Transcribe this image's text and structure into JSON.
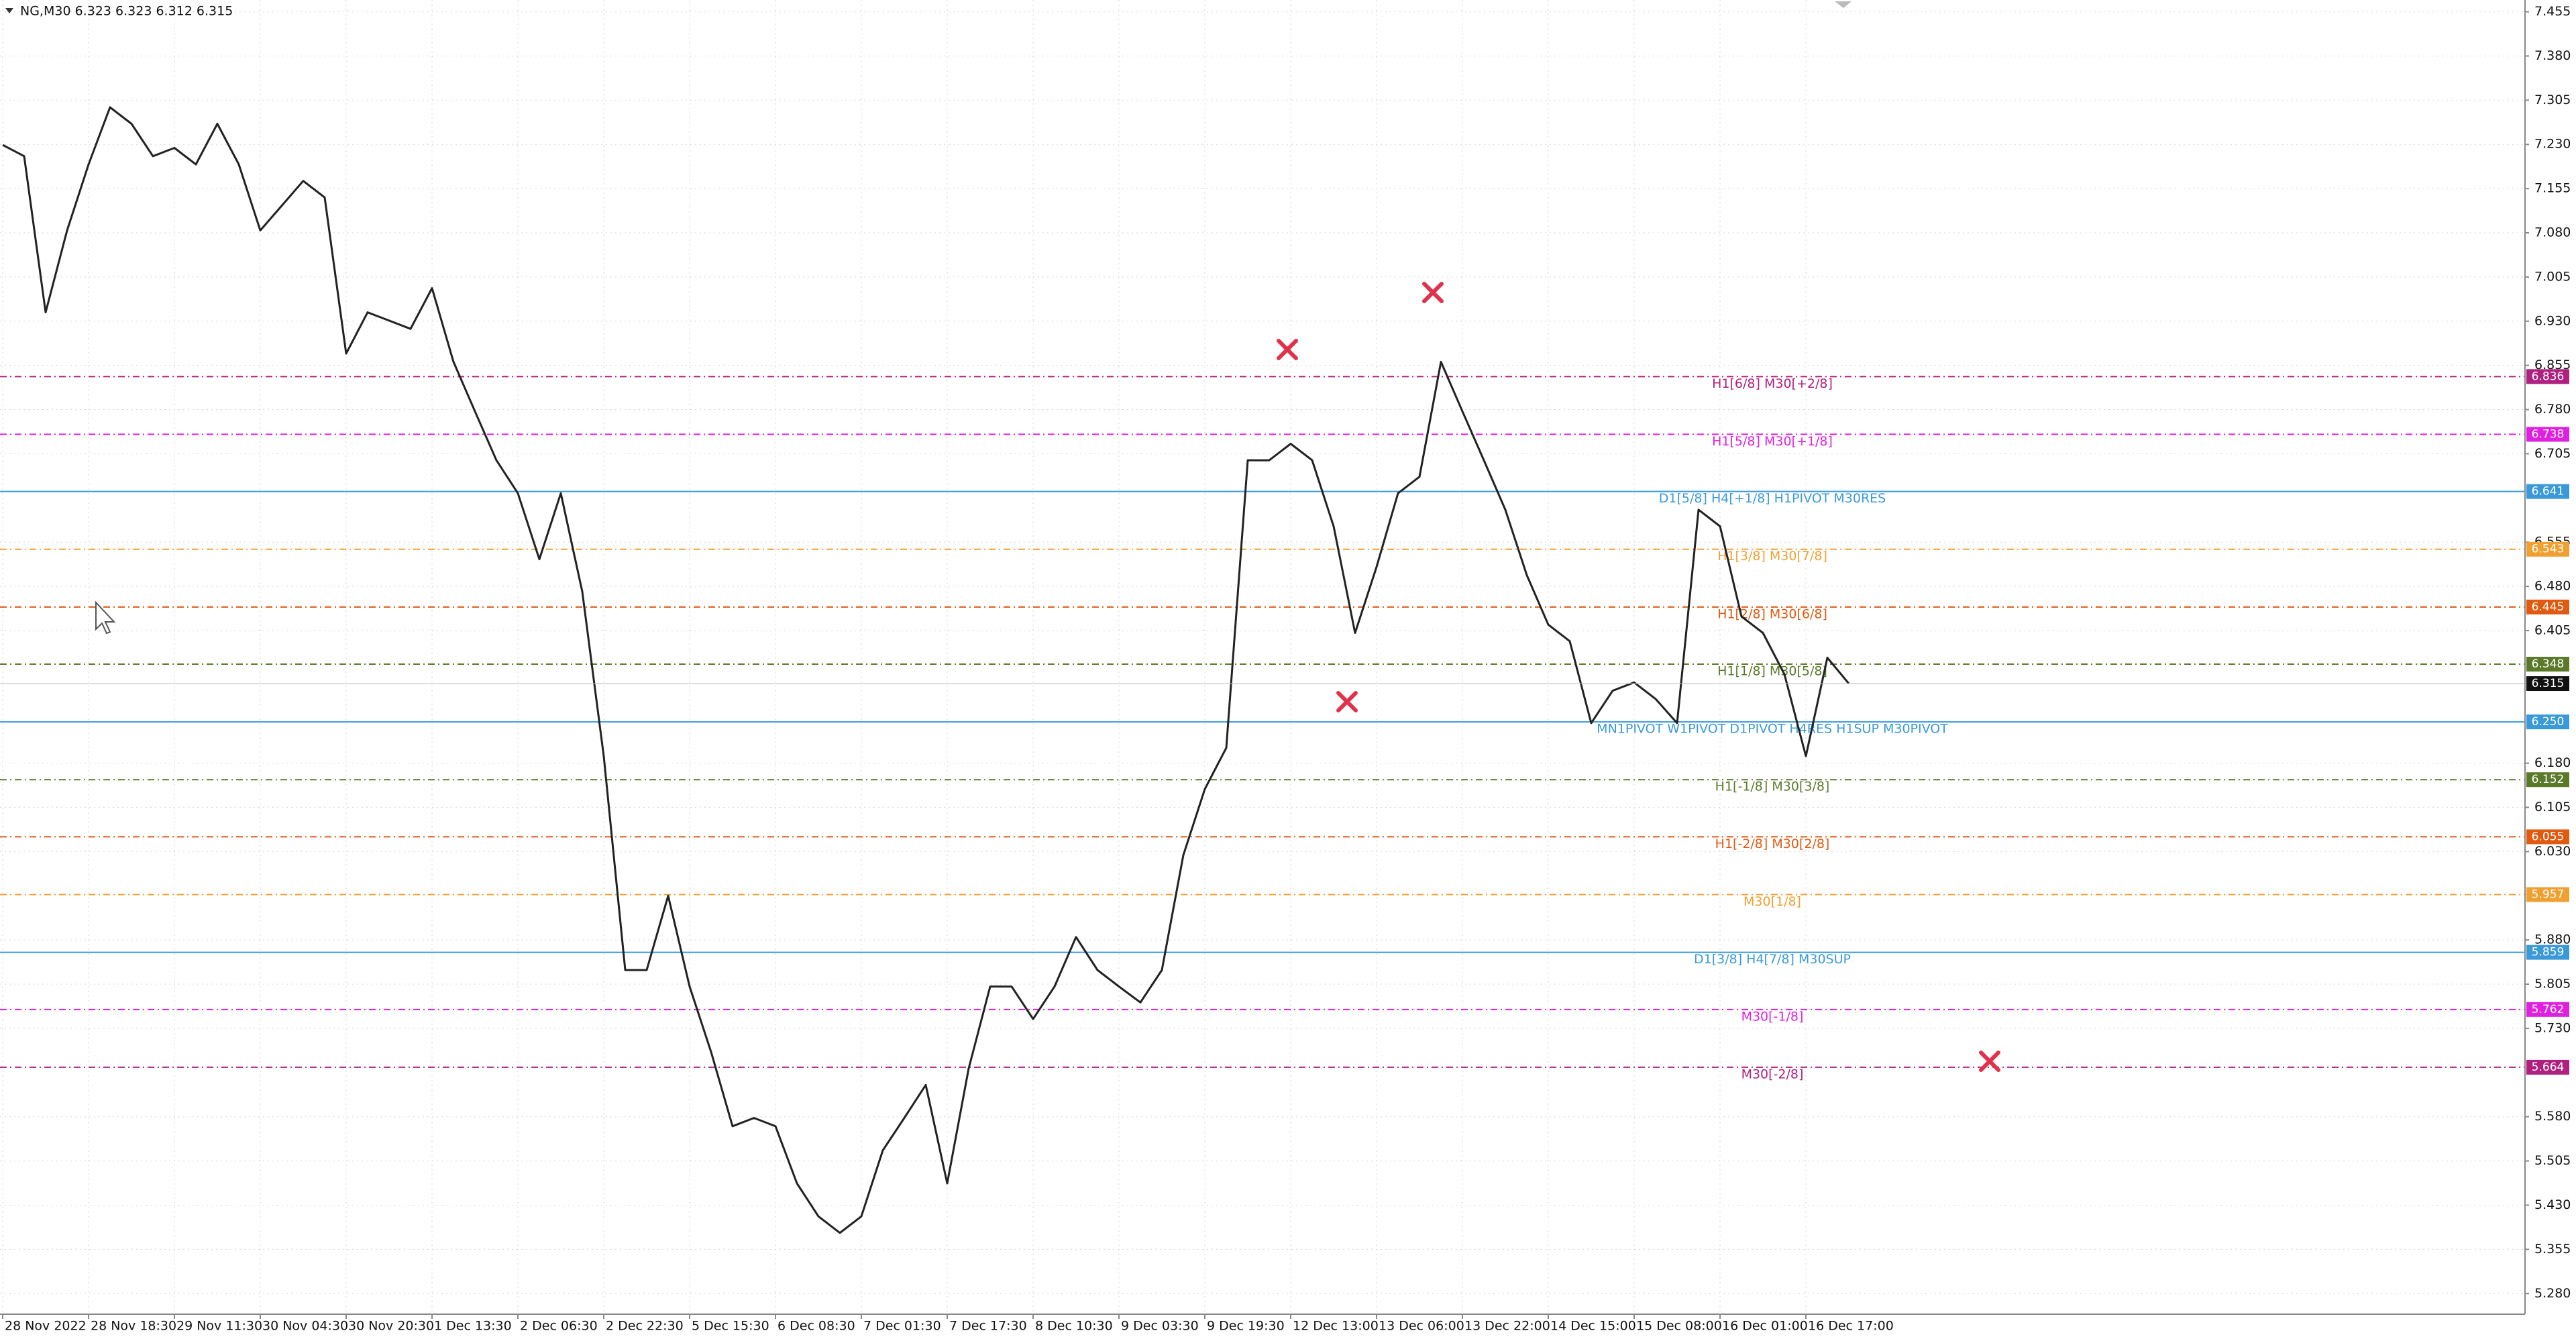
{
  "chart_data": {
    "type": "line",
    "title": "NG,M30  6.323 6.323 6.312 6.315",
    "xlim": [
      -1,
      940
    ],
    "ylim": [
      5.245,
      7.475
    ],
    "grid": true,
    "xticks": [
      {
        "value": 0,
        "label": "28 Nov 2022"
      },
      {
        "value": 32,
        "label": "28 Nov 18:30"
      },
      {
        "value": 64,
        "label": "29 Nov 11:30"
      },
      {
        "value": 96,
        "label": "30 Nov 04:30"
      },
      {
        "value": 128,
        "label": "30 Nov 20:30"
      },
      {
        "value": 160,
        "label": "1 Dec 13:30"
      },
      {
        "value": 192,
        "label": "2 Dec 06:30"
      },
      {
        "value": 224,
        "label": "2 Dec 22:30"
      },
      {
        "value": 256,
        "label": "5 Dec 15:30"
      },
      {
        "value": 288,
        "label": "6 Dec 08:30"
      },
      {
        "value": 320,
        "label": "7 Dec 01:30"
      },
      {
        "value": 352,
        "label": "7 Dec 17:30"
      },
      {
        "value": 384,
        "label": "8 Dec 10:30"
      },
      {
        "value": 416,
        "label": "9 Dec 03:30"
      },
      {
        "value": 448,
        "label": "9 Dec 19:30"
      },
      {
        "value": 480,
        "label": "12 Dec 13:00"
      },
      {
        "value": 512,
        "label": "13 Dec 06:00"
      },
      {
        "value": 544,
        "label": "13 Dec 22:00"
      },
      {
        "value": 576,
        "label": "14 Dec 15:00"
      },
      {
        "value": 608,
        "label": "15 Dec 08:00"
      },
      {
        "value": 640,
        "label": "16 Dec 01:00"
      },
      {
        "value": 672,
        "label": "16 Dec 17:00"
      }
    ],
    "yticks": [
      7.455,
      {
        "value": 7.38,
        "label": "7.380"
      },
      7.305,
      {
        "value": 7.23,
        "label": "7.230"
      },
      7.155,
      {
        "value": 7.08,
        "label": "7.080"
      },
      7.005,
      {
        "value": 6.93,
        "label": "6.930"
      },
      6.855,
      {
        "value": 6.78,
        "label": "6.780"
      },
      6.705,
      6.555,
      {
        "value": 6.48,
        "label": "6.480"
      },
      6.405,
      {
        "value": 6.18,
        "label": "6.180"
      },
      6.105,
      {
        "value": 6.03,
        "label": "6.030"
      },
      {
        "value": 5.88,
        "label": "5.880"
      },
      5.805,
      {
        "value": 5.73,
        "label": "5.730"
      },
      {
        "value": 5.58,
        "label": "5.580"
      },
      5.505,
      {
        "value": 5.43,
        "label": "5.430"
      },
      5.355,
      {
        "value": 5.28,
        "label": "5.280"
      }
    ],
    "series": [
      {
        "name": "NG,M30",
        "color": "#222222",
        "x": [
          0,
          8,
          16,
          24,
          32,
          40,
          48,
          56,
          64,
          72,
          80,
          88,
          96,
          104,
          112,
          120,
          128,
          136,
          144,
          152,
          160,
          168,
          176,
          184,
          192,
          200,
          208,
          216,
          224,
          232,
          240,
          248,
          256,
          264,
          272,
          280,
          288,
          296,
          304,
          312,
          320,
          328,
          336,
          344,
          352,
          360,
          368,
          376,
          384,
          392,
          400,
          408,
          416,
          424,
          432,
          440,
          448,
          456,
          464,
          472,
          480,
          488,
          496,
          504,
          512,
          520,
          528,
          536,
          544,
          552,
          560,
          568,
          576,
          584,
          592,
          600,
          608,
          616,
          624,
          632,
          640,
          648,
          656,
          664,
          672,
          680,
          688
        ],
        "values": [
          7.229,
          7.21,
          6.945,
          7.084,
          7.196,
          7.293,
          7.265,
          7.21,
          7.224,
          7.196,
          7.265,
          7.196,
          7.084,
          7.126,
          7.168,
          7.14,
          6.875,
          6.945,
          6.931,
          6.917,
          6.986,
          6.861,
          6.777,
          6.694,
          6.638,
          6.526,
          6.638,
          6.471,
          6.192,
          5.829,
          5.829,
          5.955,
          5.801,
          5.69,
          5.564,
          5.578,
          5.564,
          5.467,
          5.411,
          5.383,
          5.411,
          5.523,
          5.578,
          5.634,
          5.467,
          5.662,
          5.801,
          5.801,
          5.746,
          5.801,
          5.885,
          5.829,
          5.801,
          5.774,
          5.829,
          6.024,
          6.136,
          6.206,
          6.694,
          6.694,
          6.722,
          6.694,
          6.582,
          6.401,
          6.513,
          6.638,
          6.666,
          6.861,
          6.777,
          6.694,
          6.61,
          6.499,
          6.415,
          6.387,
          6.248,
          6.303,
          6.317,
          6.289,
          6.248,
          6.61,
          6.582,
          6.429,
          6.401,
          6.331,
          6.192,
          6.359,
          6.315
        ]
      }
    ],
    "levels": [
      {
        "text": "H1[6/8] M30[+2/8]",
        "value": 6.836,
        "color": "#b0207f",
        "style": "dashdot"
      },
      {
        "text": "H1[5/8] M30[+1/8]",
        "value": 6.738,
        "color": "#e020e0",
        "style": "dashdot"
      },
      {
        "text": "D1[5/8] H4[+1/8] H1PIVOT M30RES",
        "value": 6.641,
        "color": "#3a9ad9",
        "style": "solid"
      },
      {
        "text": "H1[3/8] M30[7/8]",
        "value": 6.543,
        "color": "#f0a030",
        "style": "dashdot"
      },
      {
        "text": "H1[2/8] M30[6/8]",
        "value": 6.445,
        "color": "#e05a10",
        "style": "dashdot"
      },
      {
        "text": "H1[1/8] M30[5/8]",
        "value": 6.348,
        "color": "#5a7a2a",
        "style": "dashdot"
      },
      {
        "text": "MN1PIVOT W1PIVOT D1PIVOT H4RES H1SUP M30PIVOT",
        "value": 6.25,
        "value_label": "6.250",
        "color": "#3a9ad9",
        "style": "solid"
      },
      {
        "text": "H1[-1/8] M30[3/8]",
        "value": 6.152,
        "color": "#5a7a2a",
        "style": "dashdot"
      },
      {
        "text": "H1[-2/8] M30[2/8]",
        "value": 6.055,
        "color": "#e05a10",
        "style": "dashdot"
      },
      {
        "text": "M30[1/8]",
        "value": 5.957,
        "color": "#f0a030",
        "style": "dashdot"
      },
      {
        "text": "D1[3/8] H4[7/8] M30SUP",
        "value": 5.859,
        "color": "#3a9ad9",
        "style": "solid"
      },
      {
        "text": "M30[-1/8]",
        "value": 5.762,
        "color": "#e020e0",
        "style": "dashdot"
      },
      {
        "text": "M30[-2/8]",
        "value": 5.664,
        "color": "#b0207f",
        "style": "dashdot"
      }
    ],
    "last_price": 6.315
  }
}
